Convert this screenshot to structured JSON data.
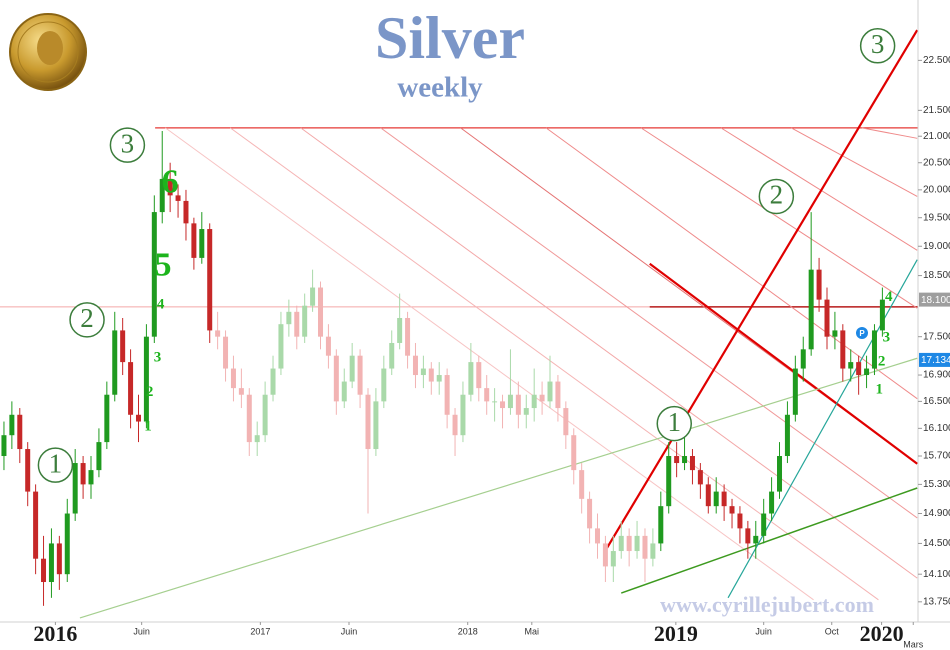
{
  "chart_data": {
    "type": "candlestick",
    "title": "Silver",
    "subtitle": "weekly",
    "watermark": "www.cyrillejubert.com",
    "log_scale": true,
    "grid": false,
    "ylim": [
      13.5,
      23.77
    ],
    "yticks": [
      {
        "value": 13.75,
        "label": "13.750"
      },
      {
        "value": 14.1,
        "label": "14.100"
      },
      {
        "value": 14.5,
        "label": "14.500"
      },
      {
        "value": 14.9,
        "label": "14.900"
      },
      {
        "value": 15.3,
        "label": "15.300"
      },
      {
        "value": 15.7,
        "label": "15.700"
      },
      {
        "value": 16.1,
        "label": "16.100"
      },
      {
        "value": 16.5,
        "label": "16.500"
      },
      {
        "value": 16.9,
        "label": "16.900"
      },
      {
        "value": 17.5,
        "label": "17.500"
      },
      {
        "value": 18.5,
        "label": "18.500"
      },
      {
        "value": 19,
        "label": "19.000"
      },
      {
        "value": 19.5,
        "label": "19.500"
      },
      {
        "value": 20,
        "label": "20.000"
      },
      {
        "value": 20.5,
        "label": "20.500"
      },
      {
        "value": 21,
        "label": "21.000"
      },
      {
        "value": 21.5,
        "label": "21.500"
      },
      {
        "value": 22.5,
        "label": "22.500"
      }
    ],
    "xlim": [
      0,
      116
    ],
    "xticks": [
      {
        "value": 7.0,
        "label": "2016",
        "major": true
      },
      {
        "value": 17.9,
        "label": "Juin"
      },
      {
        "value": 32.9,
        "label": "2017"
      },
      {
        "value": 44.1,
        "label": "Juin"
      },
      {
        "value": 59.1,
        "label": "2018"
      },
      {
        "value": 67.2,
        "label": "Mai"
      },
      {
        "value": 85.4,
        "label": "2019",
        "major": true
      },
      {
        "value": 96.5,
        "label": "Juin"
      },
      {
        "value": 105.1,
        "label": "Oct"
      },
      {
        "value": 111.4,
        "label": "2020",
        "major": true
      },
      {
        "value": 115.4,
        "label": "Mars"
      }
    ],
    "up_color": "#1f9a1f",
    "down_color": "#c62828",
    "faded_up_color": "#a9d9a9",
    "faded_down_color": "#f2b3b3",
    "highlight_ranges": [
      [
        0,
        26
      ],
      [
        83,
        111
      ]
    ],
    "candles": [
      [
        15.7,
        16.2,
        15.5,
        16.0
      ],
      [
        16.0,
        16.5,
        15.8,
        16.3
      ],
      [
        16.3,
        16.4,
        15.6,
        15.8
      ],
      [
        15.8,
        15.9,
        15.0,
        15.2
      ],
      [
        15.2,
        15.3,
        14.1,
        14.3
      ],
      [
        14.3,
        14.6,
        13.7,
        14.0
      ],
      [
        14.0,
        14.7,
        13.8,
        14.5
      ],
      [
        14.5,
        14.6,
        13.9,
        14.1
      ],
      [
        14.1,
        15.1,
        14.0,
        14.9
      ],
      [
        14.9,
        15.8,
        14.8,
        15.6
      ],
      [
        15.6,
        15.7,
        15.1,
        15.3
      ],
      [
        15.3,
        15.7,
        15.1,
        15.5
      ],
      [
        15.5,
        16.1,
        15.4,
        15.9
      ],
      [
        15.9,
        16.8,
        15.8,
        16.6
      ],
      [
        16.6,
        17.9,
        16.5,
        17.6
      ],
      [
        17.6,
        17.8,
        16.9,
        17.1
      ],
      [
        17.1,
        17.3,
        16.1,
        16.3
      ],
      [
        16.3,
        16.6,
        15.9,
        16.2
      ],
      [
        16.2,
        17.7,
        16.1,
        17.5
      ],
      [
        17.5,
        19.9,
        17.4,
        19.6
      ],
      [
        19.6,
        21.1,
        19.4,
        20.2
      ],
      [
        20.2,
        20.5,
        19.6,
        19.9
      ],
      [
        19.9,
        20.1,
        19.5,
        19.8
      ],
      [
        19.8,
        20.0,
        19.1,
        19.4
      ],
      [
        19.4,
        19.5,
        18.6,
        18.8
      ],
      [
        18.8,
        19.6,
        18.7,
        19.3
      ],
      [
        19.3,
        19.4,
        17.4,
        17.6
      ],
      [
        17.6,
        17.9,
        17.3,
        17.5
      ],
      [
        17.5,
        17.6,
        16.8,
        17.0
      ],
      [
        17.0,
        17.2,
        16.5,
        16.7
      ],
      [
        16.7,
        17.0,
        16.4,
        16.6
      ],
      [
        16.6,
        16.7,
        15.7,
        15.9
      ],
      [
        15.9,
        16.2,
        15.7,
        16.0
      ],
      [
        16.0,
        16.8,
        15.9,
        16.6
      ],
      [
        16.6,
        17.2,
        16.5,
        17.0
      ],
      [
        17.0,
        17.9,
        16.9,
        17.7
      ],
      [
        17.7,
        18.1,
        17.5,
        17.9
      ],
      [
        17.9,
        18.0,
        17.3,
        17.5
      ],
      [
        17.5,
        18.2,
        17.4,
        18.0
      ],
      [
        18.0,
        18.6,
        17.9,
        18.3
      ],
      [
        18.3,
        18.4,
        17.3,
        17.5
      ],
      [
        17.5,
        17.7,
        17.0,
        17.2
      ],
      [
        17.2,
        17.3,
        16.3,
        16.5
      ],
      [
        16.5,
        17.0,
        16.4,
        16.8
      ],
      [
        16.8,
        17.4,
        16.7,
        17.2
      ],
      [
        17.2,
        17.3,
        16.4,
        16.6
      ],
      [
        16.6,
        16.7,
        14.9,
        15.8
      ],
      [
        15.8,
        16.7,
        15.7,
        16.5
      ],
      [
        16.5,
        17.2,
        16.4,
        17.0
      ],
      [
        17.0,
        17.6,
        16.9,
        17.4
      ],
      [
        17.4,
        18.2,
        17.3,
        17.8
      ],
      [
        17.8,
        17.9,
        17.0,
        17.2
      ],
      [
        17.2,
        17.4,
        16.7,
        16.9
      ],
      [
        16.9,
        17.2,
        16.7,
        17.0
      ],
      [
        17.0,
        17.1,
        16.6,
        16.8
      ],
      [
        16.8,
        17.1,
        16.6,
        16.9
      ],
      [
        16.9,
        17.0,
        16.1,
        16.3
      ],
      [
        16.3,
        16.4,
        15.7,
        16.0
      ],
      [
        16.0,
        16.8,
        15.9,
        16.6
      ],
      [
        16.6,
        17.4,
        16.5,
        17.1
      ],
      [
        17.1,
        17.2,
        16.5,
        16.7
      ],
      [
        16.7,
        16.9,
        16.3,
        16.5
      ],
      [
        16.5,
        16.7,
        16.2,
        16.5
      ],
      [
        16.5,
        16.6,
        16.1,
        16.4
      ],
      [
        16.4,
        17.3,
        16.3,
        16.6
      ],
      [
        16.6,
        16.8,
        16.1,
        16.3
      ],
      [
        16.3,
        16.6,
        16.1,
        16.4
      ],
      [
        16.4,
        17.0,
        16.2,
        16.6
      ],
      [
        16.6,
        16.8,
        16.3,
        16.5
      ],
      [
        16.5,
        17.2,
        16.4,
        16.8
      ],
      [
        16.8,
        16.9,
        16.2,
        16.4
      ],
      [
        16.4,
        16.5,
        15.8,
        16.0
      ],
      [
        16.0,
        16.1,
        15.3,
        15.5
      ],
      [
        15.5,
        15.6,
        14.9,
        15.1
      ],
      [
        15.1,
        15.2,
        14.5,
        14.7
      ],
      [
        14.7,
        14.9,
        14.3,
        14.5
      ],
      [
        14.5,
        14.6,
        14.0,
        14.2
      ],
      [
        14.2,
        14.6,
        14.0,
        14.4
      ],
      [
        14.4,
        14.8,
        14.3,
        14.6
      ],
      [
        14.6,
        14.7,
        14.2,
        14.4
      ],
      [
        14.4,
        14.8,
        14.3,
        14.6
      ],
      [
        14.6,
        14.7,
        14.0,
        14.3
      ],
      [
        14.3,
        14.7,
        14.2,
        14.5
      ],
      [
        14.5,
        15.2,
        14.4,
        15.0
      ],
      [
        15.0,
        15.9,
        14.9,
        15.7
      ],
      [
        15.7,
        15.9,
        15.4,
        15.6
      ],
      [
        15.6,
        16.2,
        15.5,
        15.7
      ],
      [
        15.7,
        15.8,
        15.3,
        15.5
      ],
      [
        15.5,
        15.6,
        15.1,
        15.3
      ],
      [
        15.3,
        15.4,
        14.9,
        15.0
      ],
      [
        15.0,
        15.4,
        14.9,
        15.2
      ],
      [
        15.2,
        15.3,
        14.8,
        15.0
      ],
      [
        15.0,
        15.1,
        14.7,
        14.9
      ],
      [
        14.9,
        15.0,
        14.5,
        14.7
      ],
      [
        14.7,
        14.8,
        14.3,
        14.5
      ],
      [
        14.5,
        14.8,
        14.3,
        14.6
      ],
      [
        14.6,
        15.1,
        14.5,
        14.9
      ],
      [
        14.9,
        15.4,
        14.8,
        15.2
      ],
      [
        15.2,
        15.9,
        15.1,
        15.7
      ],
      [
        15.7,
        16.5,
        15.6,
        16.3
      ],
      [
        16.3,
        17.2,
        16.2,
        17.0
      ],
      [
        17.0,
        17.5,
        16.8,
        17.3
      ],
      [
        17.3,
        19.6,
        17.2,
        18.6
      ],
      [
        18.6,
        18.8,
        17.9,
        18.1
      ],
      [
        18.1,
        18.3,
        17.3,
        17.5
      ],
      [
        17.5,
        17.9,
        17.3,
        17.6
      ],
      [
        17.6,
        17.7,
        16.8,
        17.0
      ],
      [
        17.0,
        17.3,
        16.8,
        17.1
      ],
      [
        17.1,
        17.2,
        16.6,
        16.9
      ],
      [
        16.9,
        17.2,
        16.7,
        17.0
      ],
      [
        17.0,
        17.7,
        16.9,
        17.6
      ],
      [
        17.6,
        18.3,
        17.5,
        18.1
      ]
    ],
    "lines": [
      {
        "x": [
          0,
          116
        ],
        "y": [
          17.98,
          17.98
        ],
        "color": "#f4a6a6",
        "width": 1
      },
      {
        "x": [
          82.1,
          116
        ],
        "y": [
          17.98,
          17.98
        ],
        "color": "#b71c1c",
        "width": 1.5
      },
      {
        "x": [
          19.6,
          116
        ],
        "y": [
          21.16,
          21.16
        ],
        "color": "#e53935",
        "width": 1.2
      },
      {
        "x": [
          20.9,
          102.8
        ],
        "y": [
          21.16,
          13.775
        ],
        "color": "#f7c4c4",
        "width": 1
      },
      {
        "x": [
          29.1,
          111.0
        ],
        "y": [
          21.16,
          13.775
        ],
        "color": "#f5b5b5",
        "width": 1
      },
      {
        "x": [
          38.0,
          115.9
        ],
        "y": [
          21.16,
          14.05
        ],
        "color": "#f3a8a8",
        "width": 1
      },
      {
        "x": [
          48.1,
          115.9
        ],
        "y": [
          21.16,
          14.84
        ],
        "color": "#f09999",
        "width": 1
      },
      {
        "x": [
          58.2,
          115.9
        ],
        "y": [
          21.16,
          15.59
        ],
        "color": "#e57373",
        "width": 1
      },
      {
        "x": [
          82.1,
          115.9
        ],
        "y": [
          18.7,
          15.59
        ],
        "color": "#e00000",
        "width": 2.2
      },
      {
        "x": [
          69.0,
          115.9
        ],
        "y": [
          21.16,
          16.54
        ],
        "color": "#ef8a8a",
        "width": 1
      },
      {
        "x": [
          81.0,
          115.9
        ],
        "y": [
          21.16,
          17.96
        ],
        "color": "#ef8a8a",
        "width": 1
      },
      {
        "x": [
          91.1,
          115.9
        ],
        "y": [
          21.16,
          18.93
        ],
        "color": "#ef8a8a",
        "width": 1
      },
      {
        "x": [
          100.0,
          115.9
        ],
        "y": [
          21.16,
          19.88
        ],
        "color": "#ef8a8a",
        "width": 1
      },
      {
        "x": [
          108.9,
          115.9
        ],
        "y": [
          21.16,
          20.96
        ],
        "color": "#ef8a8a",
        "width": 1
      },
      {
        "x": [
          76.7,
          115.9
        ],
        "y": [
          14.44,
          23.13
        ],
        "color": "#e00000",
        "width": 2.2
      },
      {
        "x": [
          10.1,
          115.9
        ],
        "y": [
          13.55,
          17.16
        ],
        "color": "#a5cf8f",
        "width": 1.2
      },
      {
        "x": [
          78.5,
          115.9
        ],
        "y": [
          13.86,
          15.25
        ],
        "color": "#3d9a1f",
        "width": 1.5
      },
      {
        "x": [
          92.0,
          115.9
        ],
        "y": [
          13.8,
          18.77
        ],
        "color": "#26a69a",
        "width": 1.2
      }
    ],
    "price_labels": [
      {
        "value": 18.1,
        "label": "18.100",
        "color": "#9e9e9e"
      },
      {
        "value": 17.134,
        "label": "17.134",
        "color": "#1e88e5"
      }
    ],
    "wave_labels": [
      {
        "text": "1",
        "x": 7.0,
        "y": 15.57
      },
      {
        "text": "2",
        "x": 11.0,
        "y": 17.77
      },
      {
        "text": "3",
        "x": 16.1,
        "y": 20.83
      },
      {
        "text": "1",
        "x": 85.2,
        "y": 16.17
      },
      {
        "text": "2",
        "x": 98.1,
        "y": 19.88
      },
      {
        "text": "3",
        "x": 110.9,
        "y": 22.8
      }
    ],
    "count_labels": [
      {
        "text": "6",
        "x": 21.5,
        "y": 20.09,
        "size": "large"
      },
      {
        "text": "5",
        "x": 20.6,
        "y": 18.63,
        "size": "large"
      },
      {
        "text": "4",
        "x": 20.3,
        "y": 18.01,
        "size": "small"
      },
      {
        "text": "3",
        "x": 19.9,
        "y": 17.16,
        "size": "small"
      },
      {
        "text": "2",
        "x": 18.9,
        "y": 16.63,
        "size": "small"
      },
      {
        "text": "1",
        "x": 18.7,
        "y": 16.12,
        "size": "small"
      },
      {
        "text": "4",
        "x": 112.3,
        "y": 18.13,
        "size": "small"
      },
      {
        "text": "3",
        "x": 112.0,
        "y": 17.48,
        "size": "small"
      },
      {
        "text": "2",
        "x": 111.4,
        "y": 17.1,
        "size": "small"
      },
      {
        "text": "1",
        "x": 111.1,
        "y": 16.67,
        "size": "small"
      }
    ]
  }
}
